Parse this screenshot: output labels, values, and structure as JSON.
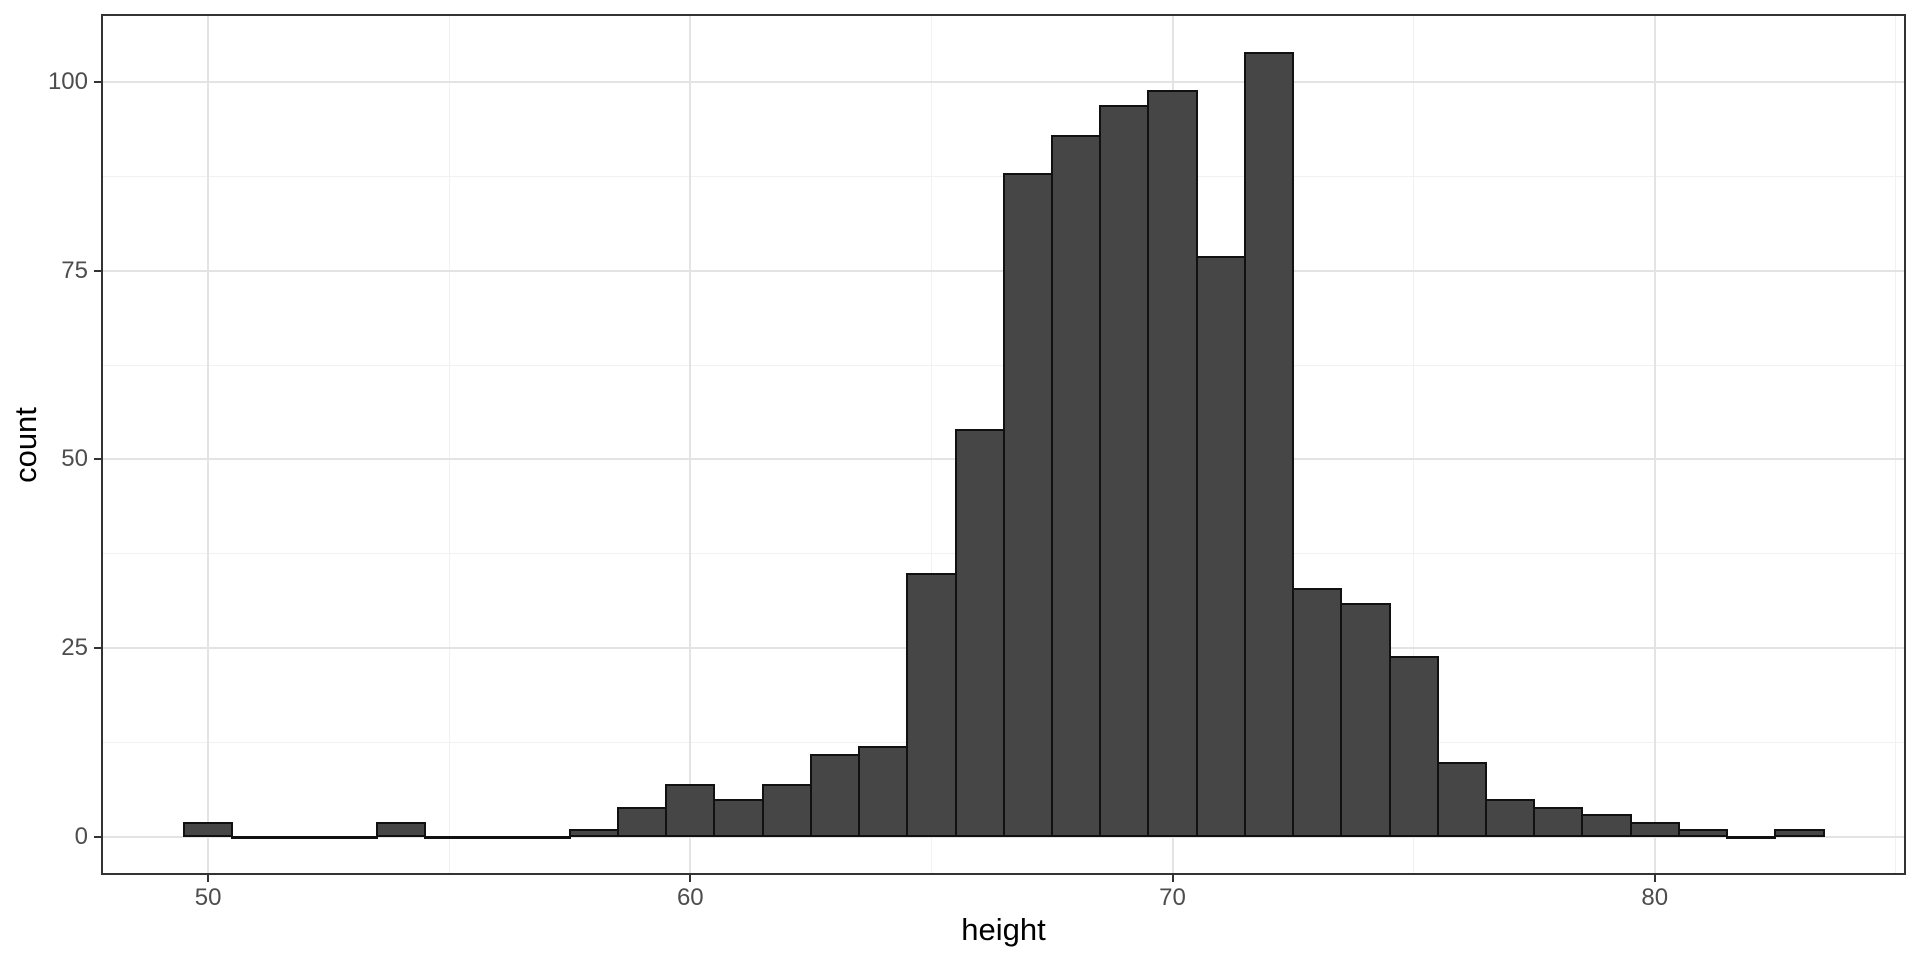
{
  "figure": {
    "background": "#ffffff"
  },
  "chart_data": {
    "type": "bar",
    "subtype": "histogram",
    "title": "",
    "xlabel": "height",
    "ylabel": "count",
    "bin_width": 1,
    "bin_centers": [
      50,
      51,
      52,
      53,
      54,
      55,
      56,
      57,
      58,
      59,
      60,
      61,
      62,
      63,
      64,
      65,
      66,
      67,
      68,
      69,
      70,
      71,
      72,
      73,
      74,
      75,
      76,
      77,
      78,
      79,
      80,
      81,
      82,
      83
    ],
    "counts": [
      2,
      0,
      0,
      0,
      2,
      0,
      0,
      0,
      1,
      4,
      7,
      5,
      7,
      11,
      12,
      35,
      54,
      88,
      93,
      97,
      99,
      77,
      104,
      33,
      31,
      24,
      10,
      5,
      4,
      3,
      2,
      1,
      0,
      1
    ],
    "x_ticks": [
      50,
      60,
      70,
      80
    ],
    "x_tick_labels": [
      "50",
      "60",
      "70",
      "80"
    ],
    "x_minor_gridlines": [
      55,
      65,
      75,
      85
    ],
    "y_ticks": [
      0,
      25,
      50,
      75,
      100
    ],
    "y_tick_labels": [
      "0",
      "25",
      "50",
      "75",
      "100"
    ],
    "y_minor_gridlines": [
      12.5,
      37.5,
      62.5,
      87.5
    ],
    "xlim": [
      47.8,
      85.19
    ],
    "ylim": [
      -4.9,
      108.87
    ],
    "grid": "major+minor",
    "legend_position": "none",
    "colors": {
      "bar_fill": "#464646",
      "bar_border": "#111111",
      "panel_border": "#333333",
      "grid_major": "#e3e3e3",
      "grid_minor": "#f1f1f1",
      "tick_mark": "#333333",
      "tick_label": "#4d4d4d",
      "axis_title": "#000000",
      "panel_background": "#ffffff"
    }
  }
}
